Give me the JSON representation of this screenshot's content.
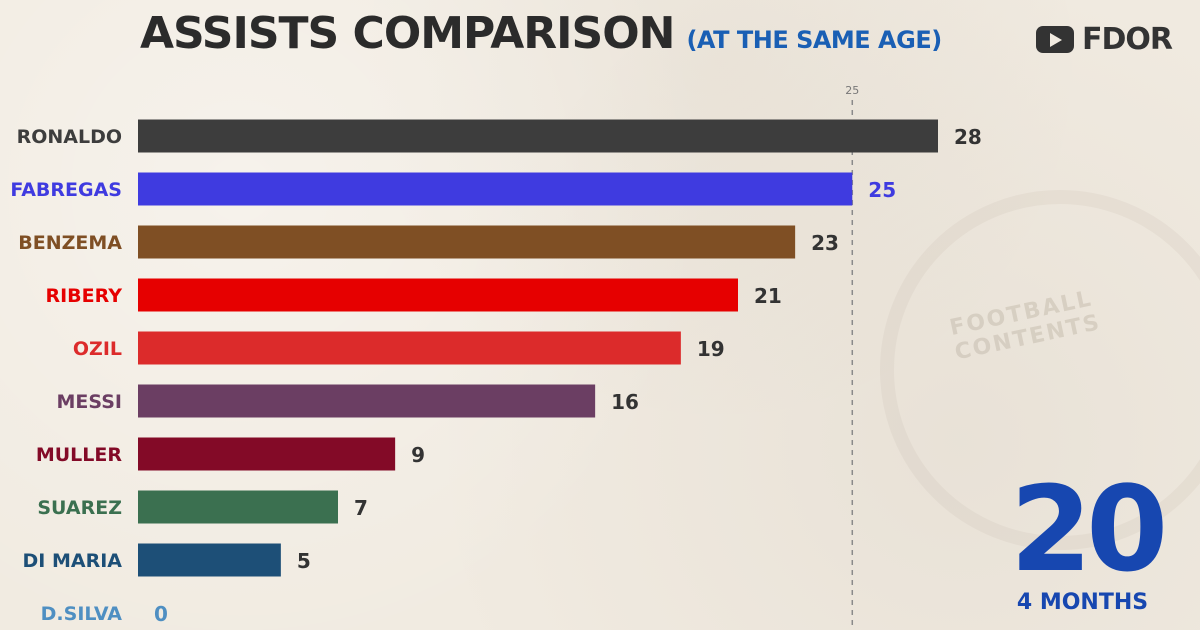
{
  "header": {
    "title": "ASSISTS COMPARISON",
    "subtitle": "(AT THE SAME AGE)"
  },
  "brand": {
    "icon": "youtube-icon",
    "text": "FDOR"
  },
  "age": {
    "value": "20",
    "unit": "4 MONTHS"
  },
  "watermark": "FOOTBALL CONTENTS",
  "chart_data": {
    "type": "bar",
    "orientation": "horizontal",
    "categories": [
      "RONALDO",
      "FABREGAS",
      "BENZEMA",
      "RIBERY",
      "OZIL",
      "MESSI",
      "MULLER",
      "SUAREZ",
      "DI MARIA",
      "D.SILVA"
    ],
    "values": [
      28,
      25,
      23,
      21,
      19,
      16,
      9,
      7,
      5,
      0
    ],
    "colors": [
      "#3d3d3d",
      "#3f3be0",
      "#7f4f24",
      "#e60000",
      "#dc2b2b",
      "#6b3e63",
      "#830a27",
      "#3b7050",
      "#1d4f77",
      "#4f8fc2"
    ],
    "label_colors": [
      "#3d3d3d",
      "#3f3be0",
      "#7f4f24",
      "#e60000",
      "#dc2b2b",
      "#6b3e63",
      "#830a27",
      "#3b7050",
      "#1d4f77",
      "#4f8fc2"
    ],
    "value_label_colors": [
      "#333333",
      "#3f3be0",
      "#333333",
      "#333333",
      "#333333",
      "#333333",
      "#333333",
      "#333333",
      "#333333",
      "#4f8fc2"
    ],
    "reference_line": {
      "value": 25,
      "label": "25",
      "style": "dashed"
    },
    "xlim": [
      0,
      28
    ]
  }
}
